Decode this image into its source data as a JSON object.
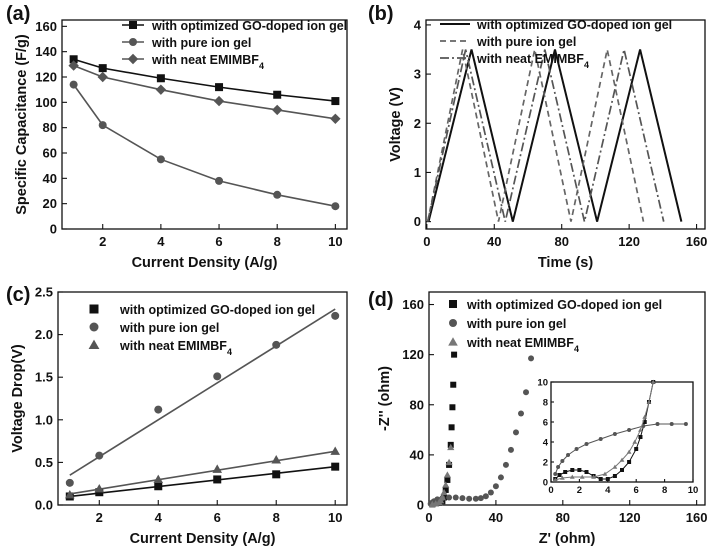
{
  "chart_data": [
    {
      "panel": "(a)",
      "type": "line",
      "xlabel": "Current Density (A/g)",
      "ylabel": "Specific Capacitance (F/g)",
      "xlim": [
        0.6,
        10.4
      ],
      "ylim": [
        0,
        165
      ],
      "xticks": [
        2,
        4,
        6,
        8,
        10
      ],
      "yticks": [
        0,
        20,
        40,
        60,
        80,
        100,
        120,
        140,
        160
      ],
      "x": [
        1,
        2,
        4,
        6,
        8,
        10
      ],
      "legend_position": "top-right",
      "series": [
        {
          "name": "with optimized GO-doped ion gel",
          "marker": "square",
          "color": "#111111",
          "values": [
            134,
            127,
            119,
            112,
            106,
            101
          ]
        },
        {
          "name": "with pure ion gel",
          "marker": "circle",
          "color": "#555555",
          "values": [
            114,
            82,
            55,
            38,
            27,
            18
          ]
        },
        {
          "name": "with neat EMIMBF",
          "name_subscript": "4",
          "marker": "diamond",
          "color": "#555555",
          "values": [
            129,
            120,
            110,
            101,
            94,
            87
          ]
        }
      ]
    },
    {
      "panel": "(b)",
      "type": "line",
      "xlabel": "Time (s)",
      "ylabel": "Voltage (V)",
      "xlim": [
        -5,
        1650
      ],
      "ylim": [
        -0.15,
        4.1
      ],
      "xticks": [
        0,
        400,
        800,
        1200,
        1600
      ],
      "xtick_labels": [
        "0",
        "40",
        "80",
        "120",
        "160"
      ],
      "yticks": [
        0,
        1,
        2,
        3,
        4
      ],
      "legend_position": "top-right",
      "series": [
        {
          "name": "with optimized GO-doped ion gel",
          "style": "solid",
          "color": "#111111",
          "x": [
            10,
            265,
            510,
            760,
            1010,
            1265,
            1510
          ],
          "y": [
            0,
            3.5,
            0,
            3.5,
            0,
            3.5,
            0
          ]
        },
        {
          "name": "with pure ion gel",
          "style": "dash",
          "color": "#666666",
          "x": [
            5,
            212,
            425,
            640,
            855,
            1070,
            1285
          ],
          "y": [
            0,
            3.5,
            0,
            3.5,
            0,
            3.5,
            0
          ]
        },
        {
          "name": "with neat EMIMBF",
          "name_subscript": "4",
          "style": "dashdot",
          "color": "#555555",
          "x": [
            5,
            230,
            465,
            700,
            935,
            1170,
            1405
          ],
          "y": [
            0,
            3.5,
            0,
            3.5,
            0,
            3.5,
            0
          ]
        }
      ]
    },
    {
      "panel": "(c)",
      "type": "scatter",
      "xlabel": "Current Density (A/g)",
      "ylabel": "Voltage Drop(V)",
      "xlim": [
        0.6,
        10.4
      ],
      "ylim": [
        0,
        2.5
      ],
      "xticks": [
        2,
        4,
        6,
        8,
        10
      ],
      "yticks": [
        0.0,
        0.5,
        1.0,
        1.5,
        2.0,
        2.5
      ],
      "ytick_labels": [
        "0.0",
        "0.5",
        "1.0",
        "1.5",
        "2.0",
        "2.5"
      ],
      "x": [
        1,
        2,
        4,
        6,
        8,
        10
      ],
      "legend_position": "top-left",
      "series": [
        {
          "name": "with optimized GO-doped ion gel",
          "marker": "square",
          "color": "#111111",
          "values": [
            0.1,
            0.15,
            0.22,
            0.3,
            0.36,
            0.45
          ],
          "fit": [
            0.1,
            0.45
          ]
        },
        {
          "name": "with pure ion gel",
          "marker": "circle",
          "color": "#555555",
          "values": [
            0.26,
            0.58,
            1.12,
            1.51,
            1.88,
            2.22
          ],
          "fit": [
            0.35,
            2.3
          ]
        },
        {
          "name": "with neat EMIMBF",
          "name_subscript": "4",
          "marker": "triangle",
          "color": "#555555",
          "values": [
            0.12,
            0.19,
            0.3,
            0.42,
            0.53,
            0.63
          ],
          "fit": [
            0.13,
            0.63
          ]
        }
      ]
    },
    {
      "panel": "(d)",
      "type": "scatter",
      "xlabel": "Z' (ohm)",
      "ylabel": "-Z'' (ohm)",
      "xlim": [
        0,
        165
      ],
      "ylim": [
        0,
        170
      ],
      "xticks": [
        0,
        40,
        80,
        120,
        160
      ],
      "yticks": [
        0,
        40,
        80,
        120,
        160
      ],
      "legend_position": "top-left",
      "series": [
        {
          "name": "with optimized GO-doped ion gel",
          "marker": "square",
          "color": "#111111",
          "x": [
            2,
            4,
            6,
            8,
            9,
            10,
            11,
            12,
            13,
            13.5,
            14,
            14.5,
            15
          ],
          "y": [
            0.5,
            1.2,
            1.8,
            3,
            6,
            12,
            20,
            32,
            48,
            62,
            78,
            96,
            120
          ]
        },
        {
          "name": "with pure ion gel",
          "marker": "circle",
          "color": "#555555",
          "x": [
            1,
            2,
            3,
            5,
            8,
            12,
            16,
            20,
            24,
            28,
            31,
            34,
            37,
            40,
            43,
            46,
            49,
            52,
            55,
            58,
            61
          ],
          "y": [
            1,
            2,
            3,
            4.5,
            5.5,
            6,
            6,
            5.5,
            5,
            5,
            5.5,
            7,
            10,
            15,
            22,
            32,
            44,
            58,
            73,
            90,
            117
          ]
        },
        {
          "name": "with neat EMIMBF",
          "name_subscript": "4",
          "marker": "triangle",
          "color": "#777777",
          "x": [
            2,
            4,
            6,
            7,
            8,
            9,
            10,
            11,
            12,
            13
          ],
          "y": [
            0.5,
            1,
            2,
            3.5,
            6,
            10,
            16,
            24,
            34,
            46
          ]
        }
      ],
      "inset": {
        "xlim": [
          0,
          10
        ],
        "ylim": [
          0,
          10
        ],
        "xticks": [
          0,
          2,
          4,
          6,
          8,
          10
        ],
        "yticks": [
          0,
          2,
          4,
          6,
          8,
          10
        ],
        "series": [
          {
            "name": "with optimized GO-doped ion gel",
            "marker": "square",
            "color": "#111111",
            "x": [
              0.3,
              0.6,
              1.0,
              1.5,
              2.0,
              2.5,
              3.0,
              3.5,
              4.0,
              4.5,
              5.0,
              5.5,
              6.0,
              6.3,
              6.6,
              6.9,
              7.2
            ],
            "y": [
              0.3,
              0.7,
              1.0,
              1.2,
              1.2,
              1.0,
              0.6,
              0.3,
              0.3,
              0.6,
              1.2,
              2.0,
              3.3,
              4.5,
              6.0,
              8.0,
              10.0
            ]
          },
          {
            "name": "with pure ion gel",
            "marker": "circle",
            "color": "#555555",
            "x": [
              0.3,
              0.5,
              0.8,
              1.2,
              1.8,
              2.5,
              3.5,
              4.5,
              5.5,
              6.5,
              7.5,
              8.5,
              9.5
            ],
            "y": [
              0.8,
              1.5,
              2.1,
              2.7,
              3.3,
              3.8,
              4.3,
              4.8,
              5.2,
              5.6,
              5.8,
              5.8,
              5.8
            ]
          },
          {
            "name": "with neat EMIMBF",
            "name_subscript": "4",
            "marker": "triangle",
            "color": "#777777",
            "x": [
              0.3,
              0.8,
              1.5,
              2.2,
              3.0,
              3.8,
              4.5,
              5.0,
              5.5,
              5.9,
              6.3,
              6.6,
              6.9,
              7.2
            ],
            "y": [
              0.2,
              0.4,
              0.5,
              0.5,
              0.5,
              0.8,
              1.5,
              2.2,
              3.0,
              4.0,
              5.2,
              6.5,
              8.0,
              10.0
            ]
          }
        ]
      }
    }
  ]
}
